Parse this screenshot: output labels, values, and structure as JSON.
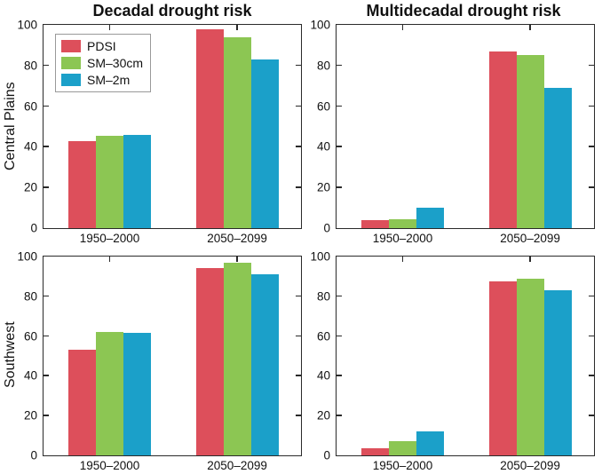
{
  "figure": {
    "column_titles": {
      "left": "Decadal drought risk",
      "right": "Multidecadal drought risk"
    },
    "row_labels": [
      "Central Plains",
      "Southwest"
    ]
  },
  "legend": {
    "position": "top-left of first panel",
    "items": [
      {
        "label": "PDSI",
        "color": "#dd4f5b"
      },
      {
        "label": "SM–30cm",
        "color": "#8cc653"
      },
      {
        "label": "SM–2m",
        "color": "#1ba0c9"
      }
    ]
  },
  "axes": {
    "ylim": [
      0,
      100
    ],
    "yticks": [
      0,
      20,
      40,
      60,
      80,
      100
    ],
    "categories": [
      "1950–2000",
      "2050–2099"
    ],
    "grid": false,
    "box": true
  },
  "chart_data": [
    {
      "type": "bar",
      "panel": "top-left",
      "row": "Central Plains",
      "column_title": "Decadal drought risk",
      "categories": [
        "1950–2000",
        "2050–2099"
      ],
      "series": [
        {
          "name": "PDSI",
          "values": [
            43,
            98
          ]
        },
        {
          "name": "SM–30cm",
          "values": [
            45.5,
            94
          ]
        },
        {
          "name": "SM–2m",
          "values": [
            46,
            83
          ]
        }
      ],
      "ylim": [
        0,
        100
      ],
      "legend_visible": true
    },
    {
      "type": "bar",
      "panel": "top-right",
      "row": "Central Plains",
      "column_title": "Multidecadal drought risk",
      "categories": [
        "1950–2000",
        "2050–2099"
      ],
      "series": [
        {
          "name": "PDSI",
          "values": [
            4,
            87
          ]
        },
        {
          "name": "SM–30cm",
          "values": [
            4.5,
            85
          ]
        },
        {
          "name": "SM–2m",
          "values": [
            10,
            69
          ]
        }
      ],
      "ylim": [
        0,
        100
      ],
      "legend_visible": false
    },
    {
      "type": "bar",
      "panel": "bottom-left",
      "row": "Southwest",
      "column_title": "Decadal drought risk",
      "categories": [
        "1950–2000",
        "2050–2099"
      ],
      "series": [
        {
          "name": "PDSI",
          "values": [
            53,
            94
          ]
        },
        {
          "name": "SM–30cm",
          "values": [
            62,
            97
          ]
        },
        {
          "name": "SM–2m",
          "values": [
            61.5,
            91
          ]
        }
      ],
      "ylim": [
        0,
        100
      ],
      "legend_visible": false
    },
    {
      "type": "bar",
      "panel": "bottom-right",
      "row": "Southwest",
      "column_title": "Multidecadal drought risk",
      "categories": [
        "1950–2000",
        "2050–2099"
      ],
      "series": [
        {
          "name": "PDSI",
          "values": [
            3.5,
            87.5
          ]
        },
        {
          "name": "SM–30cm",
          "values": [
            7,
            89
          ]
        },
        {
          "name": "SM–2m",
          "values": [
            12,
            83
          ]
        }
      ],
      "ylim": [
        0,
        100
      ],
      "legend_visible": false
    }
  ],
  "style_colors": {
    "axis": "#2a2a2a",
    "background": "#ffffff",
    "text": "#111111"
  }
}
